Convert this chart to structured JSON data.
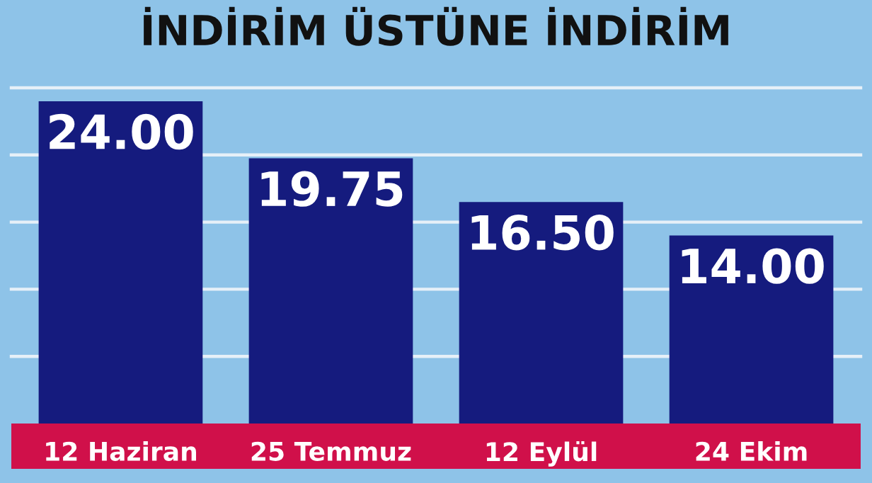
{
  "chart_data": {
    "type": "bar",
    "title": "İNDİRİM ÜSTÜNE İNDİRİM",
    "categories": [
      "12 Haziran",
      "25 Temmuz",
      "12 Eylül",
      "24 Ekim"
    ],
    "values": [
      24.0,
      19.75,
      16.5,
      14.0
    ],
    "value_labels": [
      "24.00",
      "19.75",
      "16.50",
      "14.00"
    ],
    "color": "#151b7e",
    "ylim": [
      0,
      25
    ],
    "yticks": [
      {
        "value": 5,
        "label": null
      },
      {
        "value": 10,
        "label": null
      },
      {
        "value": 15,
        "label": null
      },
      {
        "value": 20,
        "label": null
      },
      {
        "value": 25,
        "label": null
      }
    ],
    "grid": "y",
    "tick_labels": "x"
  }
}
